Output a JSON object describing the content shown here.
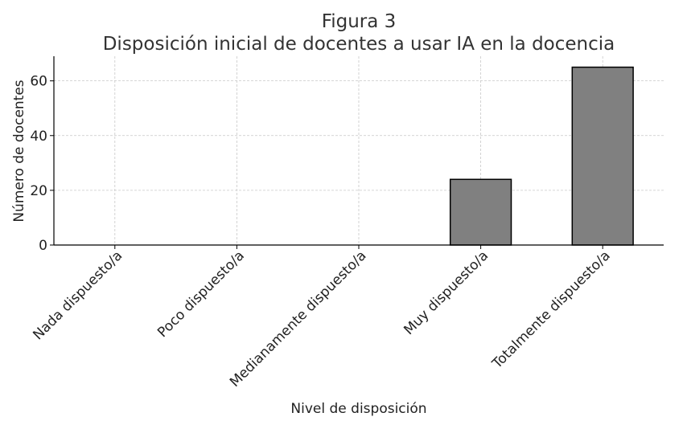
{
  "chart_data": {
    "type": "bar",
    "title": "Figura 3",
    "subtitle": "Disposición inicial de docentes a usar IA en la docencia",
    "xlabel": "Nivel de disposición",
    "ylabel": "Número de docentes",
    "categories": [
      "Nada dispuesto/a",
      "Poco dispuesto/a",
      "Medianamente dispuesto/a",
      "Muy dispuesto/a",
      "Totalmente dispuesto/a"
    ],
    "values": [
      0,
      0,
      0,
      24,
      65
    ],
    "ylim": [
      0,
      69
    ],
    "yticks": [
      0,
      20,
      40,
      60
    ],
    "grid": true,
    "bar_color": "#808080",
    "bar_edge_color": "#000000"
  }
}
